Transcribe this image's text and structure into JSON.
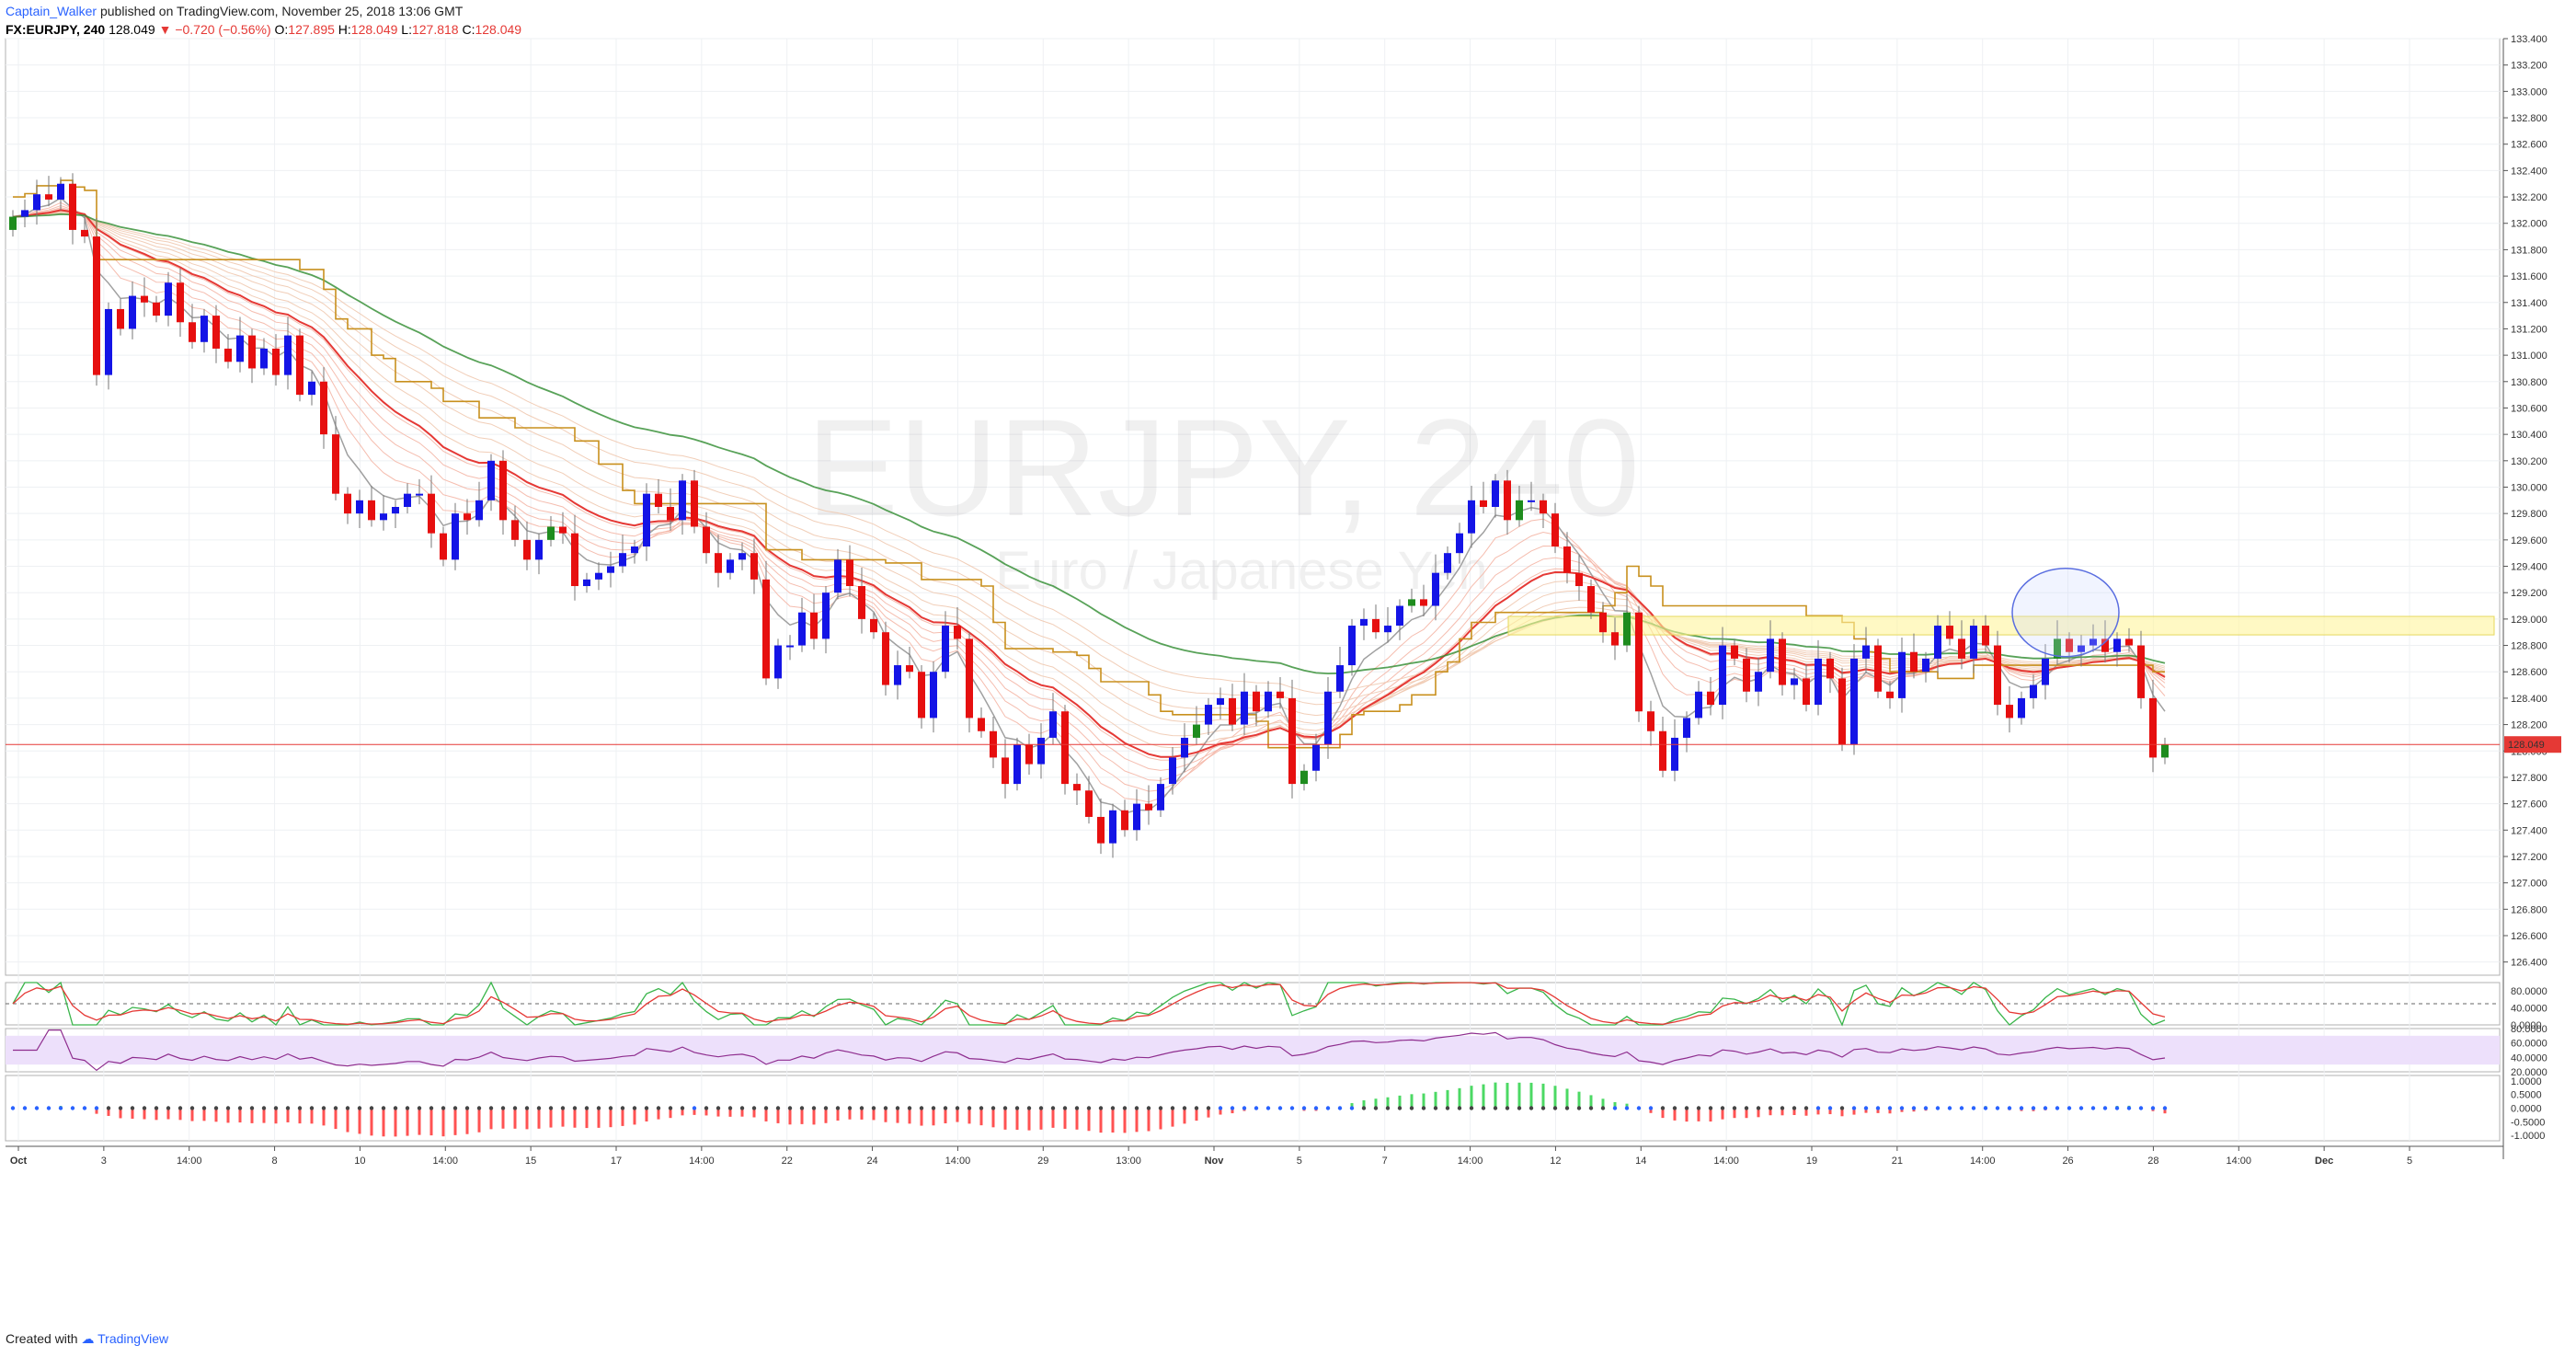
{
  "header": {
    "author": "Captain_Walker",
    "published_text": "published on TradingView.com, November 25, 2018 13:06 GMT",
    "symbol": "FX:EURJPY, 240",
    "last": "128.049",
    "change_arrow": "▼",
    "change": "−0.720 (−0.56%)",
    "o_label": "O:",
    "o_value": "127.895",
    "h_label": "H:",
    "h_value": "128.049",
    "l_label": "L:",
    "l_value": "127.818",
    "c_label": "C:",
    "c_value": "128.049"
  },
  "watermark": {
    "symbol": "EURJPY, 240",
    "description": "Euro / Japanese Yen"
  },
  "footer": {
    "created_with": "Created with",
    "brand": "TradingView"
  },
  "colors": {
    "up_blue": "#1414e6",
    "up_green": "#1e8c1e",
    "down_red": "#e60f0f",
    "price_line": "#e53935",
    "kijun": "#c8901e",
    "zone": "#fff59d",
    "rsi_band": "#ede0fb",
    "rsi_line": "#8e2d8e",
    "osc_green": "#39b54a",
    "osc_red": "#e53935",
    "osc_bull": "#4cd964",
    "osc_bear": "#ff5252"
  },
  "chart_data": [
    {
      "type": "candlestick",
      "title": "FX:EURJPY, 240",
      "ylim": [
        126.3,
        133.4
      ],
      "y_ticks": [
        "133.400",
        "133.200",
        "133.000",
        "132.800",
        "132.600",
        "132.400",
        "132.200",
        "132.000",
        "131.800",
        "131.600",
        "131.400",
        "131.200",
        "131.000",
        "130.800",
        "130.600",
        "130.400",
        "130.200",
        "130.000",
        "129.800",
        "129.600",
        "129.400",
        "129.200",
        "129.000",
        "128.800",
        "128.600",
        "128.400",
        "128.200",
        "128.000",
        "127.800",
        "127.600",
        "127.400",
        "127.200",
        "127.000",
        "126.800",
        "126.600",
        "126.400"
      ],
      "current_price": 128.049,
      "current_price_label": "128.049",
      "support_zone": [
        128.88,
        129.02
      ],
      "x_ticks": [
        "Oct",
        "3",
        "14:00",
        "8",
        "10",
        "14:00",
        "15",
        "17",
        "14:00",
        "22",
        "24",
        "14:00",
        "29",
        "13:00",
        "Nov",
        "5",
        "7",
        "14:00",
        "12",
        "14",
        "14:00",
        "19",
        "21",
        "14:00",
        "26",
        "28",
        "14:00",
        "Dec",
        "5"
      ],
      "closes": [
        132.05,
        132.1,
        132.22,
        132.18,
        132.3,
        131.95,
        131.9,
        130.85,
        131.35,
        131.2,
        131.45,
        131.4,
        131.3,
        131.55,
        131.25,
        131.1,
        131.3,
        131.05,
        130.95,
        131.15,
        130.9,
        131.05,
        130.85,
        131.15,
        130.7,
        130.8,
        130.4,
        129.95,
        129.8,
        129.9,
        129.75,
        129.8,
        129.85,
        129.95,
        129.95,
        129.65,
        129.45,
        129.8,
        129.75,
        129.9,
        130.2,
        129.75,
        129.6,
        129.45,
        129.6,
        129.7,
        129.65,
        129.25,
        129.3,
        129.35,
        129.4,
        129.5,
        129.55,
        129.95,
        129.85,
        129.75,
        130.05,
        129.7,
        129.5,
        129.35,
        129.45,
        129.5,
        129.3,
        128.55,
        128.8,
        128.8,
        129.05,
        128.85,
        129.2,
        129.45,
        129.25,
        129.0,
        128.9,
        128.5,
        128.65,
        128.6,
        128.25,
        128.6,
        128.95,
        128.85,
        128.25,
        128.15,
        127.95,
        127.75,
        128.05,
        127.9,
        128.1,
        128.3,
        127.75,
        127.7,
        127.5,
        127.3,
        127.55,
        127.4,
        127.6,
        127.55,
        127.75,
        127.95,
        128.1,
        128.2,
        128.35,
        128.4,
        128.2,
        128.45,
        128.3,
        128.45,
        128.4,
        127.75,
        127.85,
        128.05,
        128.45,
        128.65,
        128.95,
        129.0,
        128.9,
        128.95,
        129.1,
        129.15,
        129.1,
        129.35,
        129.5,
        129.65,
        129.9,
        129.85,
        130.05,
        129.75,
        129.9,
        129.9,
        129.8,
        129.55,
        129.35,
        129.25,
        129.05,
        128.9,
        128.8,
        129.05,
        128.3,
        128.15,
        127.85,
        128.1,
        128.25,
        128.45,
        128.35,
        128.8,
        128.7,
        128.45,
        128.6,
        128.85,
        128.5,
        128.55,
        128.35,
        128.7,
        128.55,
        128.05,
        128.7,
        128.8,
        128.45,
        128.4,
        128.75,
        128.6,
        128.7,
        128.95,
        128.85,
        128.7,
        128.95,
        128.8,
        128.35,
        128.25,
        128.4,
        128.5,
        128.7,
        128.85,
        128.75,
        128.8,
        128.85,
        128.75,
        128.85,
        128.8,
        128.4,
        127.95,
        128.05
      ]
    },
    {
      "type": "line",
      "name": "stochastic",
      "ylim": [
        0,
        100
      ],
      "y_ticks": [
        "80.0000",
        "40.0000",
        "0.0000"
      ],
      "midline": 50
    },
    {
      "type": "line",
      "name": "rsi",
      "ylim": [
        20,
        80
      ],
      "y_ticks": [
        "80.0000",
        "60.0000",
        "40.0000",
        "20.0000"
      ],
      "band": [
        30,
        70
      ]
    },
    {
      "type": "bar",
      "name": "momentum_histogram",
      "ylim": [
        -1.2,
        1.2
      ],
      "y_ticks": [
        "1.0000",
        "0.5000",
        "0.0000",
        "-0.5000",
        "-1.0000"
      ]
    }
  ]
}
